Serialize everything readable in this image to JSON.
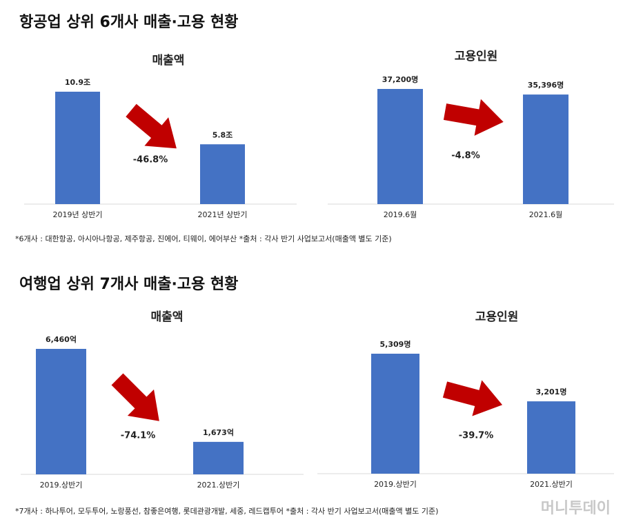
{
  "sections": [
    {
      "title": "항공업 상위 6개사 매출·고용 현황",
      "note": "*6개사 : 대한항공, 아시아나항공, 제주항공, 진에어, 티웨이, 에어부산 *출처 : 각사 반기 사업보고서(매출액 별도 기준)"
    },
    {
      "title": "여행업 상위 7개사 매출·고용 현황",
      "note": "*7개사 : 하나투어, 모두투어, 노랑풍선, 참좋은여행, 롯데관광개발, 세중, 레드캡투어 *출처 : 각사 반기 사업보고서(매출액 별도 기준)"
    }
  ],
  "watermark": "머니투데이",
  "chart_data": [
    {
      "type": "bar",
      "title": "매출액",
      "categories": [
        "2019년 상반기",
        "2021년 상반기"
      ],
      "values": [
        10.9,
        5.8
      ],
      "value_labels": [
        "10.9조",
        "5.8조"
      ],
      "color": "#4472c4",
      "annotation": "-46.8%"
    },
    {
      "type": "bar",
      "title": "고용인원",
      "categories": [
        "2019.6월",
        "2021.6월"
      ],
      "values": [
        37200,
        35396
      ],
      "value_labels": [
        "37,200명",
        "35,396명"
      ],
      "color": "#4472c4",
      "annotation": "-4.8%"
    },
    {
      "type": "bar",
      "title": "매출액",
      "categories": [
        "2019.상반기",
        "2021.상반기"
      ],
      "values": [
        6460,
        1673
      ],
      "value_labels": [
        "6,460억",
        "1,673억"
      ],
      "color": "#4472c4",
      "annotation": "-74.1%"
    },
    {
      "type": "bar",
      "title": "고용인원",
      "categories": [
        "2019.상반기",
        "2021.상반기"
      ],
      "values": [
        5309,
        3201
      ],
      "value_labels": [
        "5,309명",
        "3,201명"
      ],
      "color": "#4472c4",
      "annotation": "-39.7%"
    }
  ]
}
